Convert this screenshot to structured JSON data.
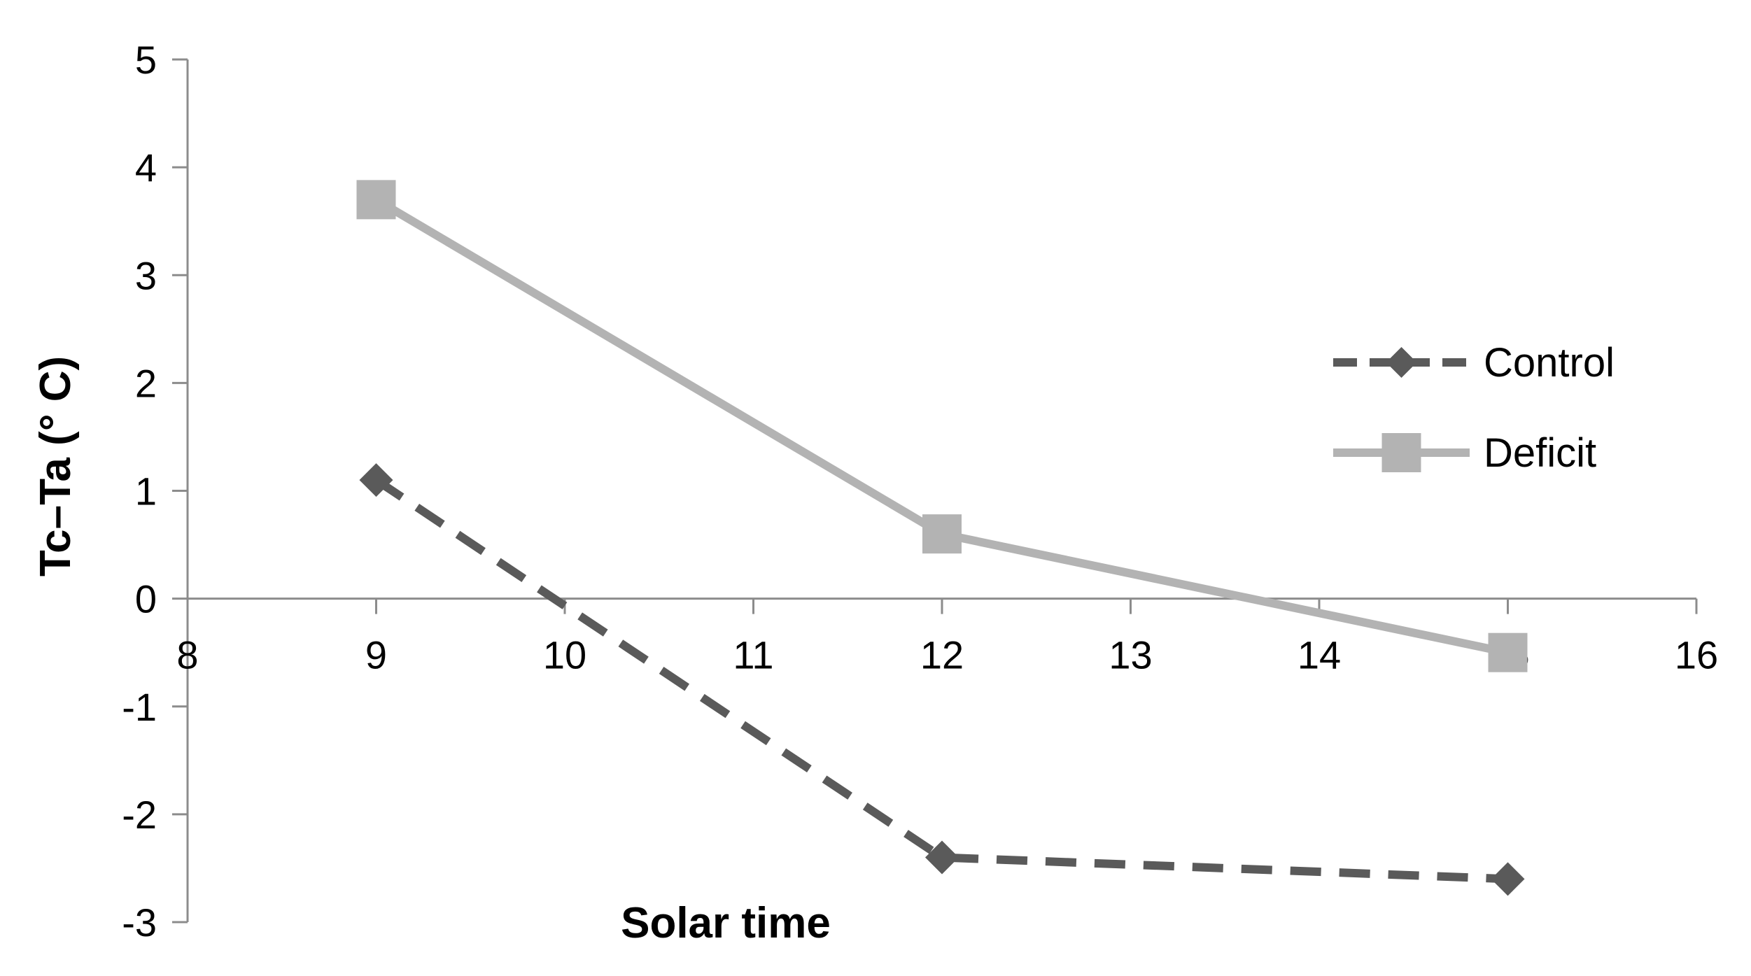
{
  "chart_data": {
    "type": "line",
    "xlabel": "Solar time",
    "ylabel": "Tc–Ta (° C)",
    "xlim": [
      8,
      16
    ],
    "ylim": [
      -3,
      5
    ],
    "xticks": [
      8,
      9,
      10,
      11,
      12,
      13,
      14,
      15,
      16
    ],
    "yticks": [
      -3,
      -2,
      -1,
      0,
      1,
      2,
      3,
      4,
      5
    ],
    "grid": false,
    "legend_position": "right",
    "series": [
      {
        "name": "Control",
        "x": [
          9,
          12,
          15
        ],
        "y": [
          1.1,
          -2.4,
          -2.6
        ],
        "color": "#5a5a5a",
        "line": "dashed",
        "marker": "diamond"
      },
      {
        "name": "Deficit",
        "x": [
          9,
          12,
          15
        ],
        "y": [
          3.7,
          0.6,
          -0.5
        ],
        "color": "#b3b3b3",
        "line": "solid",
        "marker": "square"
      }
    ]
  }
}
